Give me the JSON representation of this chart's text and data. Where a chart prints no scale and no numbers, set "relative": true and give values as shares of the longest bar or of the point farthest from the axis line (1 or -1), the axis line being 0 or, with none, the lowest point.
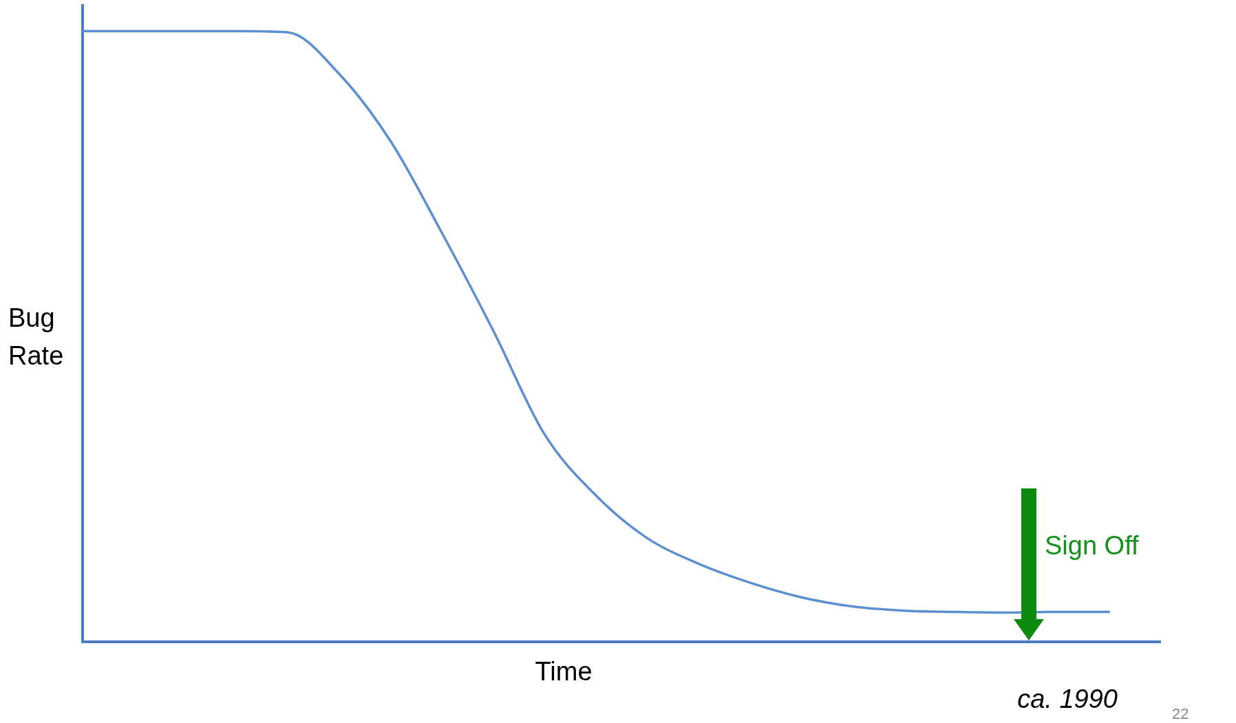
{
  "chart_data": {
    "type": "line",
    "relative": true,
    "xlabel": "Time",
    "ylabel": "Bug Rate",
    "categories": [
      null,
      null,
      null,
      null,
      null,
      null,
      null,
      null,
      null,
      null,
      null,
      null,
      null,
      null,
      null,
      null,
      null,
      null,
      null,
      null,
      null,
      null
    ],
    "series": [
      {
        "color": "#5b8fcf",
        "values": [
          1,
          1,
          1,
          1,
          0.998,
          0.93,
          0.82,
          0.67,
          0.51,
          0.34,
          0.24,
          0.17,
          0.128,
          0.097,
          0.073,
          0.058,
          0.051,
          0.049,
          0.048,
          0.049,
          0.049,
          null
        ]
      }
    ],
    "annotations": [
      "Sign Off",
      "ca. 1990",
      "22"
    ],
    "grid": false,
    "legend": false,
    "marker": "none",
    "line_style": "solid"
  }
}
